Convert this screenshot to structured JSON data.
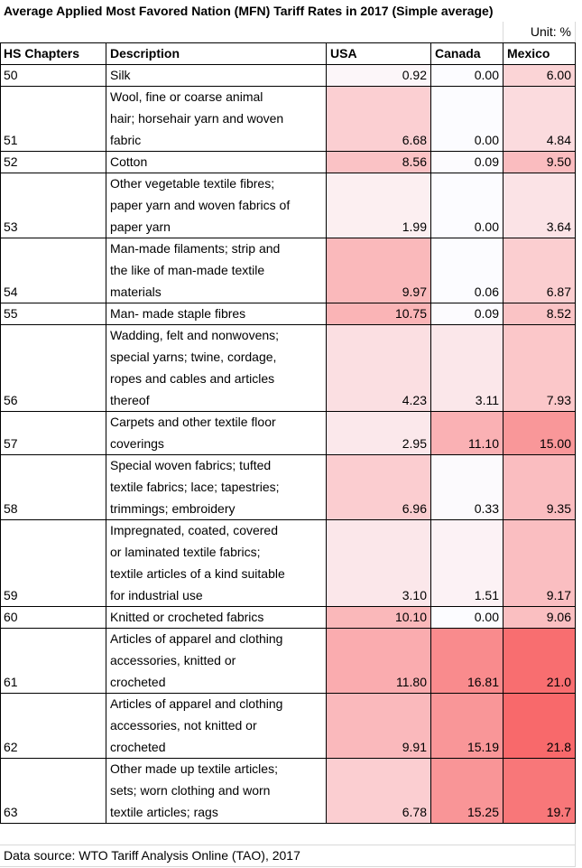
{
  "title": "Average Applied Most Favored Nation (MFN) Tariff Rates in 2017 (Simple average)",
  "unit": "Unit: %",
  "columns": [
    "HS Chapters",
    "Description",
    "USA",
    "Canada",
    "Mexico"
  ],
  "rows": [
    {
      "chapter": "50",
      "description": [
        "Silk"
      ],
      "usa": "0.92",
      "canada": "0.00",
      "mexico": "6.00"
    },
    {
      "chapter": "51",
      "description": [
        "Wool, fine or coarse animal",
        "hair; horsehair yarn and woven",
        "fabric"
      ],
      "usa": "6.68",
      "canada": "0.00",
      "mexico": "4.84"
    },
    {
      "chapter": "52",
      "description": [
        "Cotton"
      ],
      "usa": "8.56",
      "canada": "0.09",
      "mexico": "9.50"
    },
    {
      "chapter": "53",
      "description": [
        "Other vegetable textile fibres;",
        "paper yarn and woven fabrics of",
        "paper yarn"
      ],
      "usa": "1.99",
      "canada": "0.00",
      "mexico": "3.64"
    },
    {
      "chapter": "54",
      "description": [
        "Man-made filaments; strip and",
        "the like of man-made textile",
        "materials"
      ],
      "usa": "9.97",
      "canada": "0.06",
      "mexico": "6.87"
    },
    {
      "chapter": "55",
      "description": [
        "Man- made staple fibres"
      ],
      "usa": "10.75",
      "canada": "0.09",
      "mexico": "8.52"
    },
    {
      "chapter": "56",
      "description": [
        "Wadding, felt and nonwovens;",
        "special yarns; twine, cordage,",
        "ropes and cables and articles",
        "thereof"
      ],
      "usa": "4.23",
      "canada": "3.11",
      "mexico": "7.93"
    },
    {
      "chapter": "57",
      "description": [
        "Carpets and other textile floor",
        "coverings"
      ],
      "usa": "2.95",
      "canada": "11.10",
      "mexico": "15.00"
    },
    {
      "chapter": "58",
      "description": [
        "Special woven fabrics; tufted",
        "textile fabrics; lace; tapestries;",
        "trimmings; embroidery"
      ],
      "usa": "6.96",
      "canada": "0.33",
      "mexico": "9.35"
    },
    {
      "chapter": "59",
      "description": [
        "Impregnated, coated, covered",
        "or laminated textile fabrics;",
        "textile articles of a kind suitable",
        "for industrial use"
      ],
      "usa": "3.10",
      "canada": "1.51",
      "mexico": "9.17"
    },
    {
      "chapter": "60",
      "description": [
        "Knitted or crocheted fabrics"
      ],
      "usa": "10.10",
      "canada": "0.00",
      "mexico": "9.06"
    },
    {
      "chapter": "61",
      "description": [
        "Articles of apparel and clothing",
        "accessories, knitted or",
        "crocheted"
      ],
      "usa": "11.80",
      "canada": "16.81",
      "mexico": "21.0"
    },
    {
      "chapter": "62",
      "description": [
        "Articles of apparel and clothing",
        "accessories, not knitted or",
        "crocheted"
      ],
      "usa": "9.91",
      "canada": "15.19",
      "mexico": "21.8"
    },
    {
      "chapter": "63",
      "description": [
        "Other made up textile articles;",
        "sets; worn clothing and worn",
        "textile articles; rags"
      ],
      "usa": "6.78",
      "canada": "15.25",
      "mexico": "19.7"
    }
  ],
  "source": "Data source: WTO Tariff Analysis Online (TAO), 2017"
}
